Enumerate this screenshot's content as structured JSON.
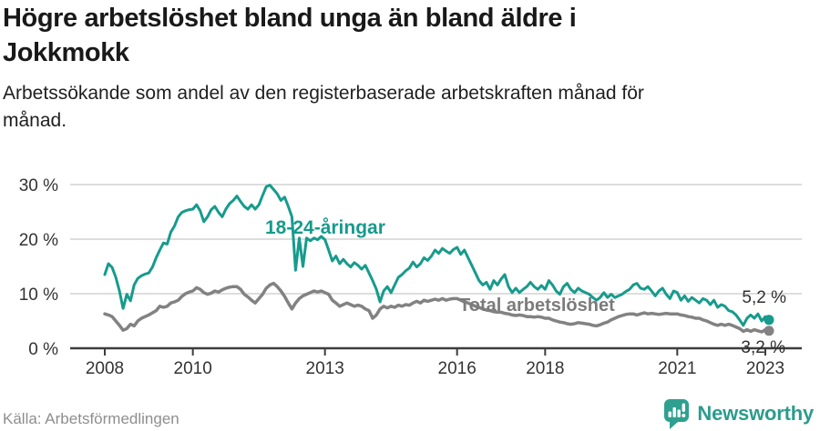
{
  "header": {
    "title": "Högre arbetslöshet bland unga än bland äldre i\nJokkmokk",
    "subtitle": "Arbetssökande som andel av den registerbaserade arbetskraften månad för\nmånad."
  },
  "footer": {
    "source": "Källa: Arbetsförmedlingen",
    "logo_text": "Newsworthy"
  },
  "colors": {
    "youth_line": "#169B8C",
    "total_line": "#828282",
    "total_label": "#7B7B7B",
    "grid": "#DDDDDD",
    "axis": "#3D3D3D",
    "tick_text": "#333333",
    "end_label_text": "#2F2F2F",
    "logo_teal": "#2B9C8D"
  },
  "chart_data": {
    "type": "line",
    "title": "Högre arbetslöshet bland unga än bland äldre i Jokkmokk",
    "subtitle": "Arbetssökande som andel av den registerbaserade arbetskraften månad för månad.",
    "source": "Källa: Arbetsförmedlingen",
    "unit": "%",
    "frequency": "monthly",
    "x_start_year": 2008,
    "x_start_month": 1,
    "x_ticks": [
      2008,
      2010,
      2013,
      2016,
      2018,
      2021,
      2023
    ],
    "y_ticks": [
      {
        "value": 0,
        "label": "0 %"
      },
      {
        "value": 10,
        "label": "10 %"
      },
      {
        "value": 20,
        "label": "20 %"
      },
      {
        "value": 30,
        "label": "30 %"
      }
    ],
    "ylim": [
      0,
      32
    ],
    "grid": "horizontal",
    "legend_position": "inline-labels",
    "series": [
      {
        "name": "18-24-åringar",
        "color": "#169B8C",
        "end_label": "5,2 %",
        "last_value": 5.2,
        "values": [
          13.5,
          15.5,
          14.8,
          13.0,
          10.5,
          7.3,
          9.9,
          8.7,
          11.6,
          12.8,
          13.3,
          13.6,
          13.8,
          14.9,
          16.6,
          18.0,
          19.3,
          19.1,
          21.3,
          22.4,
          24.1,
          24.9,
          25.2,
          25.4,
          25.5,
          26.3,
          25.2,
          23.2,
          24.1,
          25.4,
          26.0,
          24.9,
          24.1,
          25.5,
          26.5,
          27.1,
          27.9,
          26.9,
          26.0,
          25.5,
          26.3,
          25.5,
          26.3,
          28.0,
          29.6,
          29.9,
          29.1,
          28.3,
          27.1,
          27.7,
          26.0,
          24.1,
          14.3,
          20.2,
          15.0,
          20.2,
          19.7,
          20.2,
          19.9,
          20.5,
          19.9,
          18.0,
          16.0,
          16.9,
          15.5,
          16.3,
          15.5,
          14.9,
          15.7,
          15.2,
          14.5,
          15.2,
          13.8,
          12.4,
          10.8,
          8.5,
          10.5,
          11.3,
          10.2,
          11.6,
          13.0,
          13.5,
          14.2,
          14.7,
          15.8,
          14.9,
          15.5,
          16.6,
          16.1,
          16.9,
          18.0,
          17.4,
          18.3,
          17.8,
          17.4,
          18.1,
          18.5,
          17.2,
          18.0,
          16.6,
          15.2,
          13.8,
          12.4,
          11.6,
          12.1,
          10.8,
          12.4,
          11.6,
          12.7,
          13.5,
          11.3,
          10.2,
          11.0,
          10.2,
          10.8,
          11.3,
          12.1,
          11.3,
          10.8,
          11.5,
          10.8,
          12.4,
          11.6,
          10.5,
          9.9,
          11.3,
          11.9,
          10.8,
          10.2,
          11.0,
          10.5,
          10.2,
          9.9,
          9.3,
          8.8,
          9.3,
          10.2,
          9.3,
          9.9,
          9.3,
          9.6,
          9.9,
          10.4,
          10.8,
          11.6,
          11.9,
          11.0,
          10.8,
          11.3,
          10.5,
          9.6,
          10.5,
          11.0,
          9.9,
          9.1,
          10.5,
          10.2,
          8.8,
          9.6,
          8.6,
          9.3,
          8.8,
          8.3,
          9.1,
          8.8,
          8.0,
          8.8,
          7.5,
          8.0,
          7.7,
          6.9,
          6.7,
          6.1,
          5.2,
          4.2,
          5.5,
          6.1,
          5.5,
          6.3,
          5.0,
          5.8,
          5.2
        ]
      },
      {
        "name": "Total arbetslöshet",
        "color": "#828282",
        "end_label": "3,2 %",
        "last_value": 3.2,
        "values": [
          6.3,
          6.1,
          5.8,
          5.0,
          4.2,
          3.3,
          3.6,
          4.4,
          4.1,
          5.0,
          5.5,
          5.8,
          6.1,
          6.5,
          6.9,
          7.7,
          7.5,
          7.7,
          8.3,
          8.5,
          8.8,
          9.5,
          10.0,
          10.3,
          10.5,
          11.1,
          10.8,
          10.2,
          9.9,
          10.1,
          10.5,
          10.3,
          10.7,
          11.0,
          11.2,
          11.3,
          11.3,
          10.8,
          9.9,
          9.4,
          8.8,
          8.3,
          9.1,
          9.9,
          11.0,
          11.6,
          11.9,
          11.3,
          10.5,
          9.5,
          8.3,
          7.2,
          8.3,
          9.1,
          9.6,
          9.9,
          10.2,
          10.5,
          10.3,
          10.5,
          10.2,
          9.9,
          8.8,
          8.3,
          7.7,
          8.0,
          8.3,
          8.0,
          7.7,
          7.9,
          7.7,
          7.2,
          6.9,
          5.5,
          6.1,
          7.2,
          7.7,
          7.4,
          7.7,
          7.5,
          7.9,
          7.7,
          8.0,
          7.9,
          8.3,
          8.6,
          8.3,
          8.8,
          8.6,
          8.8,
          9.0,
          8.8,
          9.1,
          8.8,
          9.0,
          9.1,
          9.1,
          8.8,
          8.5,
          8.3,
          8.0,
          7.7,
          7.5,
          7.2,
          7.0,
          6.9,
          6.7,
          6.6,
          6.6,
          6.4,
          6.3,
          6.1,
          6.0,
          6.1,
          6.0,
          5.8,
          5.8,
          5.7,
          5.8,
          5.7,
          5.5,
          5.5,
          5.2,
          5.0,
          4.8,
          4.7,
          4.5,
          4.4,
          4.5,
          4.7,
          4.6,
          4.5,
          4.4,
          4.2,
          4.1,
          4.3,
          4.6,
          4.8,
          5.2,
          5.5,
          5.8,
          6.0,
          6.2,
          6.3,
          6.3,
          6.1,
          6.3,
          6.5,
          6.3,
          6.4,
          6.3,
          6.2,
          6.3,
          6.4,
          6.3,
          6.3,
          6.3,
          6.1,
          6.0,
          5.8,
          5.7,
          5.5,
          5.5,
          5.2,
          5.0,
          4.7,
          4.4,
          4.2,
          4.4,
          4.2,
          4.4,
          4.2,
          3.9,
          3.6,
          3.1,
          3.4,
          3.1,
          3.4,
          3.2,
          3.0,
          3.4,
          3.2
        ]
      }
    ]
  }
}
